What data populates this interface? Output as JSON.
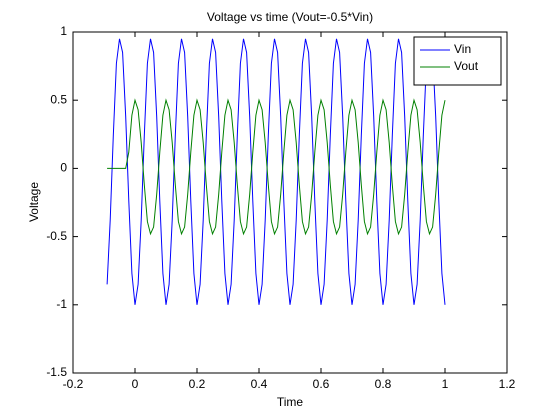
{
  "chart_data": {
    "type": "line",
    "title": "Voltage vs time (Vout=-0.5*Vin)",
    "xlabel": "Time",
    "ylabel": "Voltage",
    "xlim": [
      -0.2,
      1.2
    ],
    "xticks": [
      -0.2,
      0,
      0.2,
      0.4,
      0.6,
      0.8,
      1,
      1.2
    ],
    "ylim": [
      -1.5,
      1
    ],
    "yticks": [
      -1.5,
      -1,
      -0.5,
      0,
      0.5,
      1
    ],
    "grid": false,
    "legend": "northeast",
    "x": [
      -0.09,
      -0.08,
      -0.07,
      -0.06,
      -0.05,
      -0.04,
      -0.03,
      -0.02,
      -0.01,
      0,
      0.01,
      0.02,
      0.03,
      0.04,
      0.05,
      0.06,
      0.07,
      0.08,
      0.09,
      0.1,
      0.11,
      0.12,
      0.13,
      0.14,
      0.15,
      0.16,
      0.17,
      0.18,
      0.19,
      0.2,
      0.21,
      0.22,
      0.23,
      0.24,
      0.25,
      0.26,
      0.27,
      0.28,
      0.29,
      0.3,
      0.31,
      0.32,
      0.33,
      0.34,
      0.35,
      0.36,
      0.37,
      0.38,
      0.39,
      0.4,
      0.41,
      0.42,
      0.43,
      0.44,
      0.45,
      0.46,
      0.47,
      0.48,
      0.49,
      0.5,
      0.51,
      0.52,
      0.53,
      0.54,
      0.55,
      0.56,
      0.57,
      0.58,
      0.59,
      0.6,
      0.61,
      0.62,
      0.63,
      0.64,
      0.65,
      0.66,
      0.67,
      0.68,
      0.69,
      0.7,
      0.71,
      0.72,
      0.73,
      0.74,
      0.75,
      0.76,
      0.77,
      0.78,
      0.79,
      0.8,
      0.81,
      0.82,
      0.83,
      0.84,
      0.85,
      0.86,
      0.87,
      0.88,
      0.89,
      0.9,
      0.91,
      0.92,
      0.93,
      0.94,
      0.95,
      0.96,
      0.97,
      0.98,
      0.99,
      1
    ],
    "series": [
      {
        "name": "Vin",
        "color": "#0000ff",
        "values": [
          -0.85,
          -0.38,
          0.24,
          0.77,
          0.95,
          0.85,
          0.38,
          -0.24,
          -0.77,
          -1,
          -0.85,
          -0.38,
          0.24,
          0.77,
          0.95,
          0.85,
          0.38,
          -0.24,
          -0.77,
          -1,
          -0.85,
          -0.38,
          0.24,
          0.77,
          0.95,
          0.85,
          0.38,
          -0.24,
          -0.77,
          -1,
          -0.85,
          -0.38,
          0.24,
          0.77,
          0.95,
          0.85,
          0.38,
          -0.24,
          -0.77,
          -1,
          -0.85,
          -0.38,
          0.24,
          0.77,
          0.95,
          0.85,
          0.38,
          -0.24,
          -0.77,
          -1,
          -0.85,
          -0.38,
          0.24,
          0.77,
          0.95,
          0.85,
          0.38,
          -0.24,
          -0.77,
          -1,
          -0.85,
          -0.38,
          0.24,
          0.77,
          0.95,
          0.85,
          0.38,
          -0.24,
          -0.77,
          -1,
          -0.85,
          -0.38,
          0.24,
          0.77,
          0.95,
          0.85,
          0.38,
          -0.24,
          -0.77,
          -1,
          -0.85,
          -0.38,
          0.24,
          0.77,
          0.95,
          0.85,
          0.38,
          -0.24,
          -0.77,
          -1,
          -0.85,
          -0.38,
          0.24,
          0.77,
          0.95,
          0.85,
          0.38,
          -0.24,
          -0.77,
          -1,
          -0.85,
          -0.38,
          0.24,
          0.77,
          0.95,
          0.85,
          0.38,
          -0.24,
          -0.77,
          -1
        ]
      },
      {
        "name": "Vout",
        "color": "#008000",
        "values": [
          0,
          0,
          0,
          0,
          0,
          0,
          0,
          0.12,
          0.39,
          0.5,
          0.43,
          0.19,
          -0.12,
          -0.39,
          -0.48,
          -0.43,
          -0.19,
          0.12,
          0.39,
          0.5,
          0.43,
          0.19,
          -0.12,
          -0.39,
          -0.48,
          -0.43,
          -0.19,
          0.12,
          0.39,
          0.5,
          0.43,
          0.19,
          -0.12,
          -0.39,
          -0.48,
          -0.43,
          -0.19,
          0.12,
          0.39,
          0.5,
          0.43,
          0.19,
          -0.12,
          -0.39,
          -0.48,
          -0.43,
          -0.19,
          0.12,
          0.39,
          0.5,
          0.43,
          0.19,
          -0.12,
          -0.39,
          -0.48,
          -0.43,
          -0.19,
          0.12,
          0.39,
          0.5,
          0.43,
          0.19,
          -0.12,
          -0.39,
          -0.48,
          -0.43,
          -0.19,
          0.12,
          0.39,
          0.5,
          0.43,
          0.19,
          -0.12,
          -0.39,
          -0.48,
          -0.43,
          -0.19,
          0.12,
          0.39,
          0.5,
          0.43,
          0.19,
          -0.12,
          -0.39,
          -0.48,
          -0.43,
          -0.19,
          0.12,
          0.39,
          0.5,
          0.43,
          0.19,
          -0.12,
          -0.39,
          -0.48,
          -0.43,
          -0.19,
          0.12,
          0.39,
          0.5,
          0.43,
          0.19,
          -0.12,
          -0.39,
          -0.48,
          -0.43,
          -0.19,
          0.12,
          0.39,
          0.5
        ]
      }
    ]
  }
}
